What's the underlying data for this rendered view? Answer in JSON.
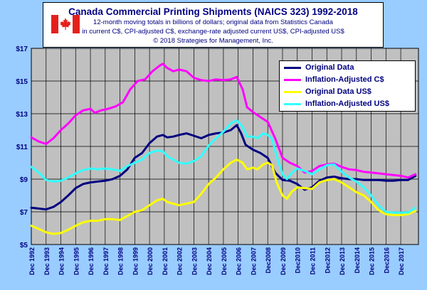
{
  "title": "Canada Commercial Printing Shipments (NAICS 323) 1992-2018",
  "subtitle_lines": [
    "12-month moving totals in billions of dollars; original data from Statistics Canada",
    "in current C$, CPI-adjusted C$, exchange-rate adjusted current US$, CPI-adjusted US$",
    "© 2018 Strategies for Management, Inc."
  ],
  "colors": {
    "background": "#99ccff",
    "plot_background": "#c0c0c0",
    "text": "#000080",
    "flag_red": "#e5201c"
  },
  "chart_data": {
    "type": "line",
    "title": "Canada Commercial Printing Shipments (NAICS 323) 1992-2018",
    "xlabel": "",
    "ylabel": "",
    "ylim": [
      5,
      17
    ],
    "xlim": [
      1992,
      2018.2
    ],
    "yticks": [
      5,
      7,
      9,
      11,
      13,
      15,
      17
    ],
    "ytick_labels": [
      "$5",
      "$7",
      "$9",
      "$11",
      "$13",
      "$15",
      "$17"
    ],
    "xtick_labels": [
      "Dec 1992",
      "Dec 1993",
      "Dec 1994",
      "Dec 1995",
      "Dec 1996",
      "Dec 1997",
      "Dec 1998",
      "Dec 1999",
      "Dec 2000",
      "Dec 2001",
      "Dec 2002",
      "Dec 2003",
      "Dec 2004",
      "Dec 2005",
      "Dec 2006",
      "Dec 2007",
      "Dec2008",
      "Dec 2009",
      "Dec2010",
      "Dec 2011",
      "Dec2012",
      "Dec 2013",
      "Dec2014",
      "Dec 2015",
      "Dec2016",
      "Dec 2017"
    ],
    "grid": true,
    "legend_position": "top-right",
    "series": [
      {
        "name": "Original Data",
        "color": "#000080",
        "points": [
          [
            1992,
            7.25
          ],
          [
            1992.5,
            7.2
          ],
          [
            1993,
            7.15
          ],
          [
            1993.5,
            7.3
          ],
          [
            1994,
            7.6
          ],
          [
            1994.5,
            8.0
          ],
          [
            1995,
            8.45
          ],
          [
            1995.5,
            8.7
          ],
          [
            1996,
            8.8
          ],
          [
            1996.5,
            8.85
          ],
          [
            1997,
            8.9
          ],
          [
            1997.5,
            9.0
          ],
          [
            1998,
            9.2
          ],
          [
            1998.5,
            9.6
          ],
          [
            1999,
            10.3
          ],
          [
            1999.5,
            10.6
          ],
          [
            2000,
            11.2
          ],
          [
            2000.5,
            11.6
          ],
          [
            2000.9,
            11.7
          ],
          [
            2001.2,
            11.55
          ],
          [
            2001.6,
            11.6
          ],
          [
            2002,
            11.7
          ],
          [
            2002.5,
            11.8
          ],
          [
            2003,
            11.65
          ],
          [
            2003.5,
            11.5
          ],
          [
            2004,
            11.7
          ],
          [
            2004.5,
            11.8
          ],
          [
            2005,
            11.85
          ],
          [
            2005.5,
            12.0
          ],
          [
            2005.9,
            12.3
          ],
          [
            2006.2,
            11.8
          ],
          [
            2006.5,
            11.1
          ],
          [
            2007,
            10.8
          ],
          [
            2007.5,
            10.6
          ],
          [
            2008,
            10.3
          ],
          [
            2008.5,
            9.4
          ],
          [
            2009,
            8.95
          ],
          [
            2009.5,
            8.9
          ],
          [
            2010,
            8.7
          ],
          [
            2010.5,
            8.35
          ],
          [
            2011,
            8.5
          ],
          [
            2011.5,
            8.9
          ],
          [
            2012,
            9.1
          ],
          [
            2012.5,
            9.15
          ],
          [
            2013,
            9.05
          ],
          [
            2013.5,
            9.0
          ],
          [
            2014,
            9.0
          ],
          [
            2014.5,
            8.95
          ],
          [
            2015,
            8.95
          ],
          [
            2015.5,
            8.95
          ],
          [
            2016,
            8.9
          ],
          [
            2016.5,
            8.9
          ],
          [
            2017,
            8.95
          ],
          [
            2017.5,
            8.95
          ],
          [
            2018,
            9.2
          ]
        ]
      },
      {
        "name": "Inflation-Adjusted C$",
        "color": "#ff00ff",
        "points": [
          [
            1992,
            11.55
          ],
          [
            1992.5,
            11.3
          ],
          [
            1993,
            11.15
          ],
          [
            1993.5,
            11.5
          ],
          [
            1994,
            12.0
          ],
          [
            1994.5,
            12.4
          ],
          [
            1995,
            12.9
          ],
          [
            1995.5,
            13.2
          ],
          [
            1996,
            13.3
          ],
          [
            1996.3,
            13.05
          ],
          [
            1996.7,
            13.2
          ],
          [
            1997.2,
            13.3
          ],
          [
            1997.7,
            13.45
          ],
          [
            1998.2,
            13.7
          ],
          [
            1998.7,
            14.5
          ],
          [
            1999.2,
            15.0
          ],
          [
            1999.7,
            15.1
          ],
          [
            2000.2,
            15.6
          ],
          [
            2000.7,
            15.95
          ],
          [
            2000.9,
            16.05
          ],
          [
            2001.2,
            15.8
          ],
          [
            2001.6,
            15.6
          ],
          [
            2002,
            15.7
          ],
          [
            2002.5,
            15.6
          ],
          [
            2003,
            15.2
          ],
          [
            2003.5,
            15.05
          ],
          [
            2004,
            15.0
          ],
          [
            2004.5,
            15.1
          ],
          [
            2005,
            15.05
          ],
          [
            2005.5,
            15.1
          ],
          [
            2005.9,
            15.25
          ],
          [
            2006.3,
            14.5
          ],
          [
            2006.6,
            13.4
          ],
          [
            2007,
            13.1
          ],
          [
            2007.5,
            12.8
          ],
          [
            2008,
            12.5
          ],
          [
            2008.5,
            11.5
          ],
          [
            2009,
            10.3
          ],
          [
            2009.5,
            10.0
          ],
          [
            2010,
            9.8
          ],
          [
            2010.5,
            9.4
          ],
          [
            2011,
            9.5
          ],
          [
            2011.5,
            9.8
          ],
          [
            2012,
            9.9
          ],
          [
            2012.5,
            9.95
          ],
          [
            2013,
            9.75
          ],
          [
            2013.5,
            9.6
          ],
          [
            2014,
            9.55
          ],
          [
            2014.5,
            9.45
          ],
          [
            2015,
            9.4
          ],
          [
            2015.5,
            9.35
          ],
          [
            2016,
            9.3
          ],
          [
            2016.5,
            9.25
          ],
          [
            2017,
            9.2
          ],
          [
            2017.5,
            9.1
          ],
          [
            2018,
            9.3
          ]
        ]
      },
      {
        "name": "Original Data US$",
        "color": "#ffff00",
        "points": [
          [
            1992,
            6.15
          ],
          [
            1992.5,
            5.95
          ],
          [
            1993,
            5.75
          ],
          [
            1993.5,
            5.65
          ],
          [
            1994,
            5.7
          ],
          [
            1994.5,
            5.9
          ],
          [
            1995,
            6.15
          ],
          [
            1995.5,
            6.35
          ],
          [
            1996,
            6.45
          ],
          [
            1996.5,
            6.45
          ],
          [
            1997,
            6.55
          ],
          [
            1997.5,
            6.55
          ],
          [
            1998,
            6.5
          ],
          [
            1998.5,
            6.75
          ],
          [
            1999,
            7.0
          ],
          [
            1999.5,
            7.1
          ],
          [
            2000,
            7.4
          ],
          [
            2000.5,
            7.7
          ],
          [
            2000.9,
            7.8
          ],
          [
            2001.2,
            7.6
          ],
          [
            2001.6,
            7.5
          ],
          [
            2002,
            7.4
          ],
          [
            2002.5,
            7.5
          ],
          [
            2003,
            7.6
          ],
          [
            2003.5,
            8.1
          ],
          [
            2004,
            8.7
          ],
          [
            2004.5,
            9.1
          ],
          [
            2005,
            9.6
          ],
          [
            2005.5,
            10.0
          ],
          [
            2005.9,
            10.2
          ],
          [
            2006.3,
            10.0
          ],
          [
            2006.6,
            9.6
          ],
          [
            2007,
            9.7
          ],
          [
            2007.3,
            9.6
          ],
          [
            2007.7,
            9.9
          ],
          [
            2008,
            10.0
          ],
          [
            2008.3,
            9.85
          ],
          [
            2008.6,
            8.8
          ],
          [
            2009,
            8.0
          ],
          [
            2009.3,
            7.8
          ],
          [
            2009.6,
            8.2
          ],
          [
            2010,
            8.5
          ],
          [
            2010.5,
            8.45
          ],
          [
            2011,
            8.4
          ],
          [
            2011.5,
            8.8
          ],
          [
            2012,
            8.95
          ],
          [
            2012.5,
            9.0
          ],
          [
            2013,
            8.8
          ],
          [
            2013.5,
            8.5
          ],
          [
            2014,
            8.2
          ],
          [
            2014.5,
            8.0
          ],
          [
            2015,
            7.6
          ],
          [
            2015.5,
            7.1
          ],
          [
            2016,
            6.85
          ],
          [
            2016.5,
            6.8
          ],
          [
            2017,
            6.8
          ],
          [
            2017.5,
            6.85
          ],
          [
            2018,
            7.05
          ]
        ]
      },
      {
        "name": "Inflation-Adjusted US$",
        "color": "#33ffff",
        "points": [
          [
            1992,
            9.75
          ],
          [
            1992.5,
            9.4
          ],
          [
            1993,
            8.95
          ],
          [
            1993.5,
            8.85
          ],
          [
            1994,
            8.9
          ],
          [
            1994.5,
            9.1
          ],
          [
            1995,
            9.35
          ],
          [
            1995.5,
            9.55
          ],
          [
            1996,
            9.65
          ],
          [
            1996.5,
            9.6
          ],
          [
            1997,
            9.65
          ],
          [
            1997.5,
            9.6
          ],
          [
            1998,
            9.5
          ],
          [
            1998.5,
            9.8
          ],
          [
            1999,
            10.0
          ],
          [
            1999.5,
            10.2
          ],
          [
            2000,
            10.6
          ],
          [
            2000.5,
            10.75
          ],
          [
            2000.9,
            10.7
          ],
          [
            2001.2,
            10.4
          ],
          [
            2001.6,
            10.2
          ],
          [
            2002,
            10.0
          ],
          [
            2002.5,
            9.95
          ],
          [
            2003,
            10.1
          ],
          [
            2003.5,
            10.4
          ],
          [
            2004,
            11.05
          ],
          [
            2004.5,
            11.5
          ],
          [
            2005,
            11.9
          ],
          [
            2005.5,
            12.4
          ],
          [
            2005.9,
            12.6
          ],
          [
            2006.3,
            12.2
          ],
          [
            2006.6,
            11.6
          ],
          [
            2007,
            11.6
          ],
          [
            2007.3,
            11.5
          ],
          [
            2007.7,
            11.8
          ],
          [
            2008,
            11.7
          ],
          [
            2008.3,
            11.45
          ],
          [
            2008.6,
            10.4
          ],
          [
            2009,
            9.3
          ],
          [
            2009.3,
            9.0
          ],
          [
            2009.6,
            9.35
          ],
          [
            2010,
            9.65
          ],
          [
            2010.5,
            9.5
          ],
          [
            2011,
            9.3
          ],
          [
            2011.5,
            9.6
          ],
          [
            2012,
            9.85
          ],
          [
            2012.5,
            9.9
          ],
          [
            2013,
            9.45
          ],
          [
            2013.5,
            9.1
          ],
          [
            2014,
            8.85
          ],
          [
            2014.5,
            8.5
          ],
          [
            2015,
            8.0
          ],
          [
            2015.5,
            7.4
          ],
          [
            2016,
            7.0
          ],
          [
            2016.5,
            6.95
          ],
          [
            2017,
            6.95
          ],
          [
            2017.5,
            6.95
          ],
          [
            2018,
            7.25
          ]
        ]
      }
    ]
  }
}
